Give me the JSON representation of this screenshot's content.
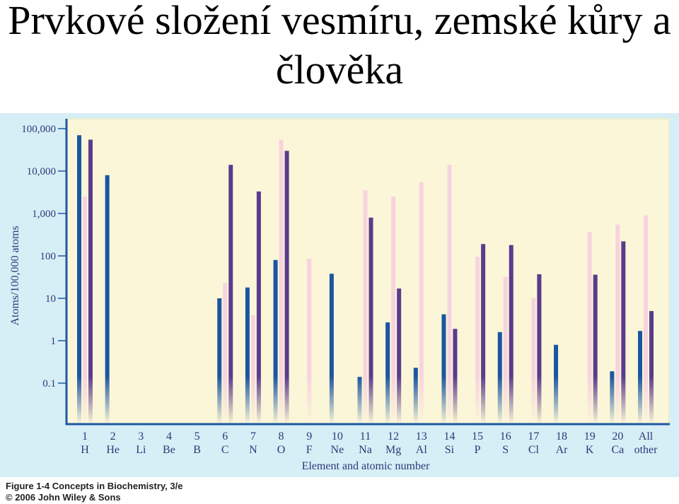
{
  "slide_title": "Prvkové složení vesmíru, zemské kůry a člověka",
  "caption": {
    "line1": "Figure 1-4 Concepts in Biochemistry, 3/e",
    "line2": "© 2006 John Wiley & Sons"
  },
  "colors": {
    "panel_bg": "#d6eef5",
    "plot_bg": "#fbf6d8",
    "series_universe": "#1a56a0",
    "series_crust": "#f7d3df",
    "series_human": "#5b3b8c"
  },
  "chart_data": {
    "type": "bar",
    "scale": "log",
    "ylabel": "Atoms/100,000 atoms",
    "xlabel": "Element and atomic number",
    "ylim": [
      0.1,
      100000
    ],
    "y_ticks": [
      "100,000",
      "10,000",
      "1,000",
      "100",
      "10",
      "1",
      "0.1"
    ],
    "grid": false,
    "categories": [
      {
        "number": "1",
        "symbol": "H"
      },
      {
        "number": "2",
        "symbol": "He"
      },
      {
        "number": "3",
        "symbol": "Li"
      },
      {
        "number": "4",
        "symbol": "Be"
      },
      {
        "number": "5",
        "symbol": "B"
      },
      {
        "number": "6",
        "symbol": "C"
      },
      {
        "number": "7",
        "symbol": "N"
      },
      {
        "number": "8",
        "symbol": "O"
      },
      {
        "number": "9",
        "symbol": "F"
      },
      {
        "number": "10",
        "symbol": "Ne"
      },
      {
        "number": "11",
        "symbol": "Na"
      },
      {
        "number": "12",
        "symbol": "Mg"
      },
      {
        "number": "13",
        "symbol": "Al"
      },
      {
        "number": "14",
        "symbol": "Si"
      },
      {
        "number": "15",
        "symbol": "P"
      },
      {
        "number": "16",
        "symbol": "S"
      },
      {
        "number": "17",
        "symbol": "Cl"
      },
      {
        "number": "18",
        "symbol": "Ar"
      },
      {
        "number": "19",
        "symbol": "K"
      },
      {
        "number": "20",
        "symbol": "Ca"
      },
      {
        "number": "All",
        "symbol": "other"
      }
    ],
    "series": [
      {
        "key": "universe",
        "values": [
          70000,
          8000,
          null,
          null,
          null,
          10,
          18,
          80,
          null,
          38,
          0.14,
          2.7,
          0.23,
          4.2,
          null,
          1.6,
          null,
          0.8,
          null,
          0.19,
          1.7
        ]
      },
      {
        "key": "crust",
        "values": [
          2500,
          null,
          null,
          null,
          null,
          23,
          4,
          55000,
          85,
          null,
          3500,
          2500,
          5500,
          14000,
          95,
          32,
          10,
          null,
          370,
          550,
          900
        ]
      },
      {
        "key": "human",
        "values": [
          55000,
          null,
          null,
          null,
          null,
          14000,
          3300,
          30000,
          null,
          null,
          800,
          17,
          null,
          1.9,
          190,
          180,
          37,
          null,
          36,
          220,
          5
        ]
      }
    ]
  }
}
